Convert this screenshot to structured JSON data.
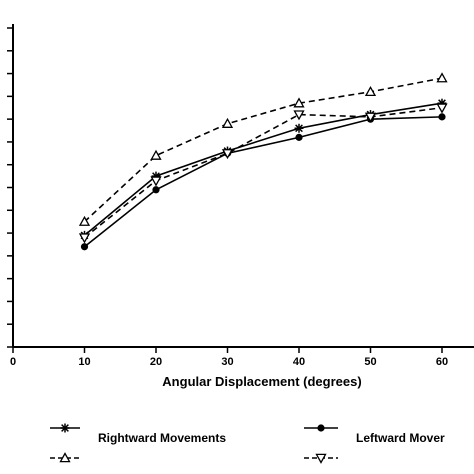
{
  "chart_data": {
    "type": "line",
    "title": "",
    "xlabel": "Angular Displacement (degrees)",
    "ylabel": "",
    "x": [
      10,
      20,
      30,
      40,
      50,
      60
    ],
    "x_tick_labels": [
      "0",
      "10",
      "20",
      "30",
      "40",
      "50",
      "60"
    ],
    "xlim": [
      0,
      65
    ],
    "ylim": [
      0,
      14
    ],
    "y_ticks": [
      0,
      1,
      2,
      3,
      4,
      5,
      6,
      7,
      8,
      9,
      10,
      11,
      12,
      13,
      14
    ],
    "y_tick_labels_visible": false,
    "grid": false,
    "legend_placement": "bottom",
    "legend_groups": [
      {
        "label": "Rightward Movements",
        "series_indices": [
          0,
          1
        ]
      },
      {
        "label": "Leftward Mover",
        "series_indices": [
          2,
          3
        ]
      }
    ],
    "series": [
      {
        "marker": "asterisk",
        "dash": "solid",
        "values": [
          4.9,
          7.5,
          8.6,
          9.6,
          10.2,
          10.7
        ]
      },
      {
        "marker": "triangle-up",
        "dash": "dashed",
        "values": [
          5.5,
          8.4,
          9.8,
          10.7,
          11.2,
          11.8
        ]
      },
      {
        "marker": "circle",
        "dash": "solid",
        "values": [
          4.4,
          6.9,
          8.5,
          9.2,
          10.0,
          10.1
        ]
      },
      {
        "marker": "triangle-down",
        "dash": "dashed",
        "values": [
          4.8,
          7.3,
          8.5,
          10.2,
          10.1,
          10.5
        ]
      }
    ]
  }
}
